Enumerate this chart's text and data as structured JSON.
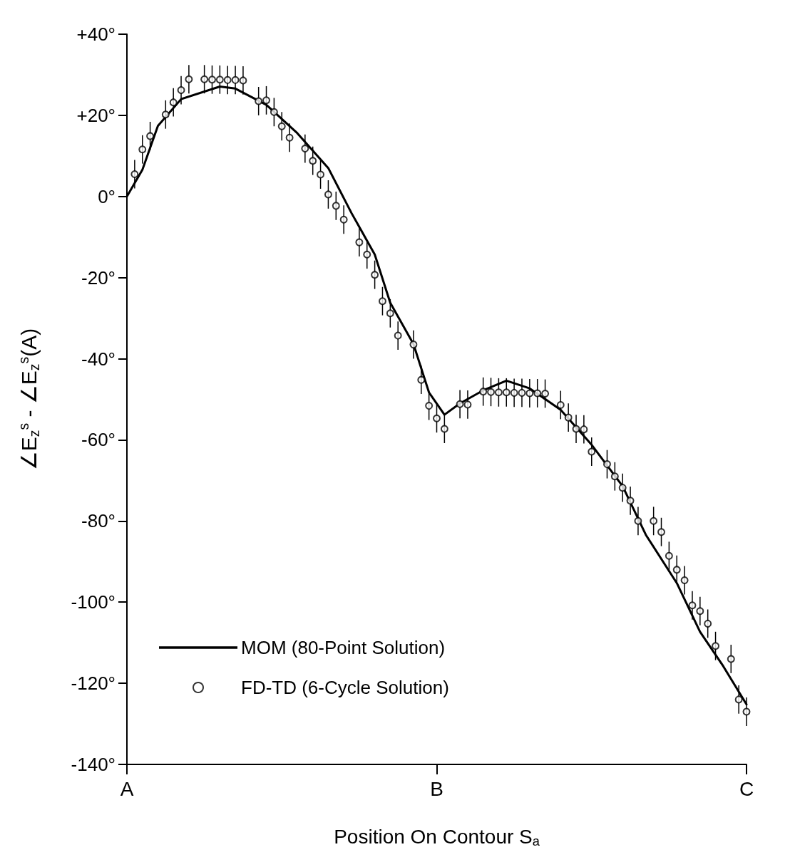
{
  "chart_data": {
    "type": "line",
    "xlabel": "Position On Contour S$_{a}$",
    "ylabel": "∠E$_{z}$$^{s}$ - ∠E$_{z}$$^{s}$(A)",
    "categories": [
      "A",
      null,
      null,
      null,
      null,
      null,
      null,
      null,
      null,
      null,
      null,
      null,
      null,
      null,
      null,
      null,
      null,
      null,
      null,
      null,
      null,
      null,
      null,
      null,
      null,
      null,
      null,
      null,
      null,
      null,
      null,
      null,
      null,
      null,
      null,
      null,
      null,
      null,
      null,
      null,
      "B",
      null,
      null,
      null,
      null,
      null,
      null,
      null,
      null,
      null,
      null,
      null,
      null,
      null,
      null,
      null,
      null,
      null,
      null,
      null,
      null,
      null,
      null,
      null,
      null,
      null,
      null,
      null,
      null,
      null,
      null,
      null,
      null,
      null,
      null,
      null,
      null,
      null,
      null,
      null,
      "C"
    ],
    "ylim": [
      -140,
      40
    ],
    "yticks": [
      {
        "value": -140,
        "label": "-140°"
      },
      {
        "value": -120,
        "label": "-120°"
      },
      {
        "value": -100,
        "label": "-100°"
      },
      {
        "value": -80,
        "label": "-80°"
      },
      {
        "value": -60,
        "label": "-60°"
      },
      {
        "value": -40,
        "label": "-40°"
      },
      {
        "value": -20,
        "label": "-20°"
      },
      {
        "value": 0,
        "label": "0°"
      },
      {
        "value": 20,
        "label": "+20°"
      },
      {
        "value": 40,
        "label": "+40°"
      }
    ],
    "grid": false,
    "legend": "bottom left",
    "series": [
      {
        "name": "MOM (80-Point Solution)",
        "color": "#000000",
        "marker": "none",
        "line_style": "solid",
        "values": [
          0,
          null,
          6.6,
          null,
          17.4,
          null,
          null,
          24,
          null,
          null,
          null,
          null,
          27.1,
          null,
          26.6,
          null,
          null,
          null,
          22.6,
          null,
          null,
          null,
          15.6,
          null,
          null,
          null,
          7,
          null,
          null,
          -4.1,
          null,
          null,
          -14.3,
          null,
          -26.2,
          null,
          null,
          -36.4,
          null,
          -48.3,
          null,
          -53.8,
          null,
          -51,
          null,
          null,
          -47.8,
          null,
          null,
          -45.4,
          null,
          null,
          -47.3,
          null,
          null,
          null,
          -52.6,
          null,
          null,
          null,
          -61.2,
          null,
          null,
          null,
          -71.4,
          null,
          null,
          -83.4,
          null,
          null,
          null,
          -95.3,
          null,
          null,
          -107.3,
          null,
          null,
          -115.8,
          null,
          null,
          -125.2
        ]
      },
      {
        "name": "FD-TD (6-Cycle Solution)",
        "type": "scatter",
        "color": "#000000",
        "marker": "circle",
        "values": [
          null,
          5.5,
          11.6,
          14.9,
          null,
          20.2,
          23.2,
          26.2,
          28.9,
          null,
          28.9,
          28.8,
          28.8,
          28.7,
          28.7,
          28.6,
          null,
          23.5,
          23.7,
          20.8,
          17.3,
          14.5,
          null,
          11.8,
          8.8,
          5.4,
          0.5,
          -2.3,
          -5.7,
          null,
          -11.3,
          -14.3,
          -19.3,
          -25.8,
          -28.8,
          -34.3,
          null,
          -36.5,
          -45.2,
          -51.6,
          -54.7,
          -57.3,
          null,
          -51.2,
          -51.3,
          null,
          -48.1,
          -48.2,
          -48.3,
          -48.3,
          -48.4,
          -48.4,
          -48.5,
          -48.5,
          -48.6,
          null,
          -51.4,
          -54.5,
          -57.3,
          -57.4,
          -62.9,
          null,
          -66,
          -69,
          -71.8,
          -75,
          -80,
          null,
          -80,
          -82.7,
          -88.6,
          -92,
          -94.6,
          -100.8,
          -102.2,
          -105.3,
          -110.8,
          null,
          -114,
          -124,
          -127
        ],
        "errors": [
          null,
          3.5,
          3.5,
          3.5,
          null,
          3.5,
          3.5,
          3.5,
          3.5,
          null,
          3.5,
          3.5,
          3.5,
          3.5,
          3.5,
          3.5,
          null,
          3.5,
          3.5,
          3.5,
          3.5,
          3.5,
          null,
          3.5,
          3.5,
          3.5,
          3.5,
          3.5,
          3.5,
          null,
          3.5,
          3.5,
          3.5,
          3.5,
          3.5,
          3.5,
          null,
          3.5,
          3.5,
          3.5,
          3.5,
          3.5,
          null,
          3.5,
          3.5,
          null,
          3.5,
          3.5,
          3.5,
          3.5,
          3.5,
          3.5,
          3.5,
          3.5,
          3.5,
          null,
          3.5,
          3.5,
          3.5,
          3.5,
          3.5,
          null,
          3.5,
          3.5,
          3.5,
          3.5,
          3.5,
          null,
          3.5,
          3.5,
          3.5,
          3.5,
          3.5,
          3.5,
          3.5,
          3.5,
          3.5,
          null,
          3.5,
          3.5,
          3.5
        ]
      }
    ]
  }
}
